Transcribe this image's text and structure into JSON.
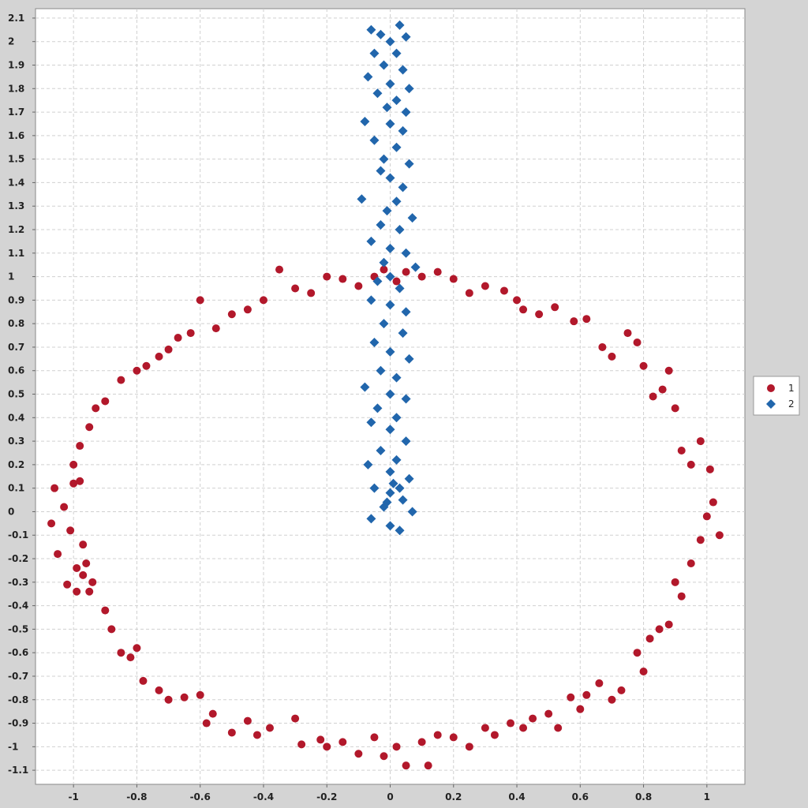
{
  "chart_data": {
    "type": "scatter",
    "title": "",
    "xlabel": "",
    "ylabel": "",
    "xlim": [
      -1.12,
      1.12
    ],
    "ylim": [
      -1.16,
      2.14
    ],
    "x_ticks": [
      -1,
      -0.8,
      -0.6,
      -0.4,
      -0.2,
      0,
      0.2,
      0.4,
      0.6,
      0.8,
      1
    ],
    "x_tick_labels": [
      "-1",
      "-0.8",
      "-0.6",
      "-0.4",
      "-0.2",
      "0",
      "0.2",
      "0.4",
      "0.6",
      "0.8",
      "1"
    ],
    "y_ticks": [
      -1.1,
      -1,
      -0.9,
      -0.8,
      -0.7,
      -0.6,
      -0.5,
      -0.4,
      -0.3,
      -0.2,
      -0.1,
      0,
      0.1,
      0.2,
      0.3,
      0.4,
      0.5,
      0.6,
      0.7,
      0.8,
      0.9,
      1,
      1.1,
      1.2,
      1.3,
      1.4,
      1.5,
      1.6,
      1.7,
      1.8,
      1.9,
      2,
      2.1
    ],
    "y_tick_labels": [
      "-1.1",
      "-1",
      "-0.9",
      "-0.8",
      "-0.7",
      "-0.6",
      "-0.5",
      "-0.4",
      "-0.3",
      "-0.2",
      "-0.1",
      "0",
      "0.1",
      "0.2",
      "0.3",
      "0.4",
      "0.5",
      "0.6",
      "0.7",
      "0.8",
      "0.9",
      "1",
      "1.1",
      "1.2",
      "1.3",
      "1.4",
      "1.5",
      "1.6",
      "1.7",
      "1.8",
      "1.9",
      "2",
      "2.1"
    ],
    "grid": true,
    "legend_position": "right",
    "series": [
      {
        "name": "1",
        "marker": "circle",
        "color": "#b2182b",
        "points": [
          [
            -1.06,
            0.1
          ],
          [
            -1.07,
            -0.05
          ],
          [
            -1.05,
            -0.18
          ],
          [
            -1.02,
            -0.31
          ],
          [
            -0.99,
            -0.34
          ],
          [
            -0.97,
            -0.27
          ],
          [
            -0.96,
            -0.22
          ],
          [
            -0.94,
            -0.3
          ],
          [
            -0.9,
            -0.42
          ],
          [
            -0.88,
            -0.5
          ],
          [
            -0.85,
            -0.6
          ],
          [
            -0.82,
            -0.62
          ],
          [
            -0.8,
            -0.58
          ],
          [
            -0.78,
            -0.72
          ],
          [
            -0.73,
            -0.76
          ],
          [
            -0.7,
            -0.8
          ],
          [
            -0.65,
            -0.79
          ],
          [
            -0.6,
            -0.78
          ],
          [
            -0.58,
            -0.9
          ],
          [
            -0.56,
            -0.86
          ],
          [
            -0.5,
            -0.94
          ],
          [
            -0.45,
            -0.89
          ],
          [
            -0.42,
            -0.95
          ],
          [
            -0.38,
            -0.92
          ],
          [
            -0.3,
            -0.88
          ],
          [
            -0.28,
            -0.99
          ],
          [
            -0.22,
            -0.97
          ],
          [
            -0.2,
            -1.0
          ],
          [
            -0.15,
            -0.98
          ],
          [
            -0.1,
            -1.03
          ],
          [
            -0.05,
            -0.96
          ],
          [
            -0.02,
            -1.04
          ],
          [
            0.02,
            -1.0
          ],
          [
            0.05,
            -1.08
          ],
          [
            0.1,
            -0.98
          ],
          [
            0.12,
            -1.08
          ],
          [
            0.15,
            -0.95
          ],
          [
            0.2,
            -0.96
          ],
          [
            0.25,
            -1.0
          ],
          [
            0.3,
            -0.92
          ],
          [
            0.33,
            -0.95
          ],
          [
            0.38,
            -0.9
          ],
          [
            0.42,
            -0.92
          ],
          [
            0.45,
            -0.88
          ],
          [
            0.5,
            -0.86
          ],
          [
            0.53,
            -0.92
          ],
          [
            0.57,
            -0.79
          ],
          [
            0.6,
            -0.84
          ],
          [
            0.62,
            -0.78
          ],
          [
            0.66,
            -0.73
          ],
          [
            0.7,
            -0.8
          ],
          [
            0.73,
            -0.76
          ],
          [
            0.78,
            -0.6
          ],
          [
            0.8,
            -0.68
          ],
          [
            0.82,
            -0.54
          ],
          [
            0.85,
            -0.5
          ],
          [
            0.88,
            -0.48
          ],
          [
            0.9,
            -0.3
          ],
          [
            0.92,
            -0.36
          ],
          [
            0.95,
            -0.22
          ],
          [
            0.98,
            -0.12
          ],
          [
            1.0,
            -0.02
          ],
          [
            1.02,
            0.04
          ],
          [
            1.04,
            -0.1
          ],
          [
            1.01,
            0.18
          ],
          [
            0.98,
            0.3
          ],
          [
            0.95,
            0.2
          ],
          [
            0.92,
            0.26
          ],
          [
            0.9,
            0.44
          ],
          [
            0.88,
            0.6
          ],
          [
            0.86,
            0.52
          ],
          [
            0.83,
            0.49
          ],
          [
            0.8,
            0.62
          ],
          [
            0.78,
            0.72
          ],
          [
            0.75,
            0.76
          ],
          [
            0.7,
            0.66
          ],
          [
            0.67,
            0.7
          ],
          [
            0.62,
            0.82
          ],
          [
            0.58,
            0.81
          ],
          [
            0.52,
            0.87
          ],
          [
            0.47,
            0.84
          ],
          [
            0.42,
            0.86
          ],
          [
            0.4,
            0.9
          ],
          [
            0.36,
            0.94
          ],
          [
            0.3,
            0.96
          ],
          [
            0.25,
            0.93
          ],
          [
            0.2,
            0.99
          ],
          [
            0.15,
            1.02
          ],
          [
            0.1,
            1.0
          ],
          [
            0.05,
            1.02
          ],
          [
            0.02,
            0.98
          ],
          [
            -0.02,
            1.03
          ],
          [
            -0.05,
            1.0
          ],
          [
            -0.1,
            0.96
          ],
          [
            -0.15,
            0.99
          ],
          [
            -0.2,
            1.0
          ],
          [
            -0.25,
            0.93
          ],
          [
            -0.3,
            0.95
          ],
          [
            -0.35,
            1.03
          ],
          [
            -0.4,
            0.9
          ],
          [
            -0.45,
            0.86
          ],
          [
            -0.5,
            0.84
          ],
          [
            -0.55,
            0.78
          ],
          [
            -0.6,
            0.9
          ],
          [
            -0.63,
            0.76
          ],
          [
            -0.67,
            0.74
          ],
          [
            -0.7,
            0.69
          ],
          [
            -0.73,
            0.66
          ],
          [
            -0.77,
            0.62
          ],
          [
            -0.8,
            0.6
          ],
          [
            -0.85,
            0.56
          ],
          [
            -0.9,
            0.47
          ],
          [
            -0.93,
            0.44
          ],
          [
            -0.95,
            0.36
          ],
          [
            -0.98,
            0.28
          ],
          [
            -1.0,
            0.2
          ],
          [
            -1.0,
            0.12
          ],
          [
            -0.98,
            0.13
          ],
          [
            -1.03,
            0.02
          ],
          [
            -1.01,
            -0.08
          ],
          [
            -0.97,
            -0.14
          ],
          [
            -0.99,
            -0.24
          ],
          [
            -0.95,
            -0.34
          ]
        ]
      },
      {
        "name": "2",
        "marker": "diamond",
        "color": "#2166ac",
        "points": [
          [
            -0.06,
            2.05
          ],
          [
            -0.03,
            2.03
          ],
          [
            0.0,
            2.0
          ],
          [
            0.03,
            2.07
          ],
          [
            0.05,
            2.02
          ],
          [
            -0.05,
            1.95
          ],
          [
            0.02,
            1.95
          ],
          [
            -0.02,
            1.9
          ],
          [
            0.04,
            1.88
          ],
          [
            -0.07,
            1.85
          ],
          [
            0.0,
            1.82
          ],
          [
            0.06,
            1.8
          ],
          [
            -0.04,
            1.78
          ],
          [
            0.02,
            1.75
          ],
          [
            -0.01,
            1.72
          ],
          [
            0.05,
            1.7
          ],
          [
            -0.08,
            1.66
          ],
          [
            0.0,
            1.65
          ],
          [
            0.04,
            1.62
          ],
          [
            -0.05,
            1.58
          ],
          [
            0.02,
            1.55
          ],
          [
            -0.02,
            1.5
          ],
          [
            0.06,
            1.48
          ],
          [
            -0.03,
            1.45
          ],
          [
            0.0,
            1.42
          ],
          [
            0.04,
            1.38
          ],
          [
            -0.09,
            1.33
          ],
          [
            0.02,
            1.32
          ],
          [
            -0.01,
            1.28
          ],
          [
            0.07,
            1.25
          ],
          [
            -0.03,
            1.22
          ],
          [
            0.03,
            1.2
          ],
          [
            -0.06,
            1.15
          ],
          [
            0.0,
            1.12
          ],
          [
            0.05,
            1.1
          ],
          [
            -0.02,
            1.06
          ],
          [
            0.08,
            1.04
          ],
          [
            0.0,
            1.0
          ],
          [
            -0.04,
            0.98
          ],
          [
            0.03,
            0.95
          ],
          [
            -0.06,
            0.9
          ],
          [
            0.0,
            0.88
          ],
          [
            0.05,
            0.85
          ],
          [
            -0.02,
            0.8
          ],
          [
            0.04,
            0.76
          ],
          [
            -0.05,
            0.72
          ],
          [
            0.0,
            0.68
          ],
          [
            0.06,
            0.65
          ],
          [
            -0.03,
            0.6
          ],
          [
            0.02,
            0.57
          ],
          [
            -0.08,
            0.53
          ],
          [
            0.0,
            0.5
          ],
          [
            0.05,
            0.48
          ],
          [
            -0.04,
            0.44
          ],
          [
            0.02,
            0.4
          ],
          [
            -0.06,
            0.38
          ],
          [
            0.0,
            0.35
          ],
          [
            0.05,
            0.3
          ],
          [
            -0.03,
            0.26
          ],
          [
            0.02,
            0.22
          ],
          [
            -0.07,
            0.2
          ],
          [
            0.0,
            0.17
          ],
          [
            0.06,
            0.14
          ],
          [
            -0.05,
            0.1
          ],
          [
            0.0,
            0.08
          ],
          [
            0.04,
            0.05
          ],
          [
            -0.02,
            0.02
          ],
          [
            0.07,
            0.0
          ],
          [
            -0.06,
            -0.03
          ],
          [
            0.0,
            -0.06
          ],
          [
            0.03,
            -0.08
          ],
          [
            0.01,
            0.12
          ],
          [
            -0.01,
            0.04
          ],
          [
            0.03,
            0.1
          ]
        ]
      }
    ]
  }
}
